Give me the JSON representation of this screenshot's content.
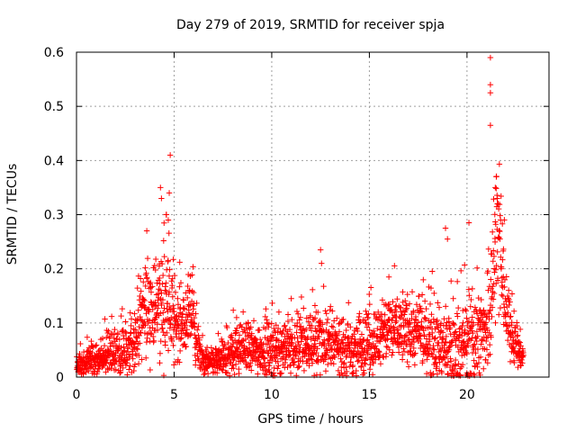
{
  "chart_data": {
    "type": "scatter",
    "title": "Day 279 of 2019, SRMTID for receiver spja",
    "xlabel": "GPS time / hours",
    "ylabel": "SRMTID / TECUs",
    "xlim": [
      0,
      24.2
    ],
    "ylim": [
      0,
      0.6
    ],
    "xticks": [
      0,
      5,
      10,
      15,
      20
    ],
    "xtick_labels": [
      "0",
      "5",
      "10",
      "15",
      "20"
    ],
    "yticks": [
      0,
      0.1,
      0.2,
      0.3,
      0.4,
      0.5,
      0.6
    ],
    "ytick_labels": [
      "0",
      "0.1",
      "0.2",
      "0.3",
      "0.4",
      "0.5",
      "0.6"
    ],
    "grid": true,
    "marker": "plus",
    "series": [
      {
        "name": "SRMTID",
        "color": "#ff0000",
        "envelope_hours": [
          0.0,
          0.5,
          1.0,
          1.5,
          2.0,
          2.5,
          3.0,
          3.3,
          3.6,
          4.0,
          4.3,
          4.6,
          5.0,
          5.5,
          5.9,
          6.2,
          6.5,
          6.8,
          7.2,
          7.6,
          8.0,
          8.5,
          9.0,
          9.5,
          10.0,
          10.5,
          11.0,
          11.5,
          12.0,
          12.5,
          13.0,
          13.5,
          14.0,
          14.5,
          15.0,
          15.5,
          16.0,
          16.5,
          17.0,
          17.5,
          18.0,
          18.5,
          19.0,
          19.5,
          20.0,
          20.5,
          21.0,
          21.3,
          21.5,
          21.8,
          22.0,
          22.3,
          22.6,
          22.9
        ],
        "envelope_center": [
          0.025,
          0.03,
          0.035,
          0.04,
          0.045,
          0.05,
          0.07,
          0.1,
          0.13,
          0.12,
          0.14,
          0.13,
          0.1,
          0.1,
          0.12,
          0.05,
          0.03,
          0.025,
          0.03,
          0.035,
          0.05,
          0.055,
          0.05,
          0.055,
          0.05,
          0.055,
          0.05,
          0.06,
          0.06,
          0.07,
          0.06,
          0.05,
          0.05,
          0.055,
          0.06,
          0.07,
          0.09,
          0.09,
          0.085,
          0.08,
          0.07,
          0.06,
          0.05,
          0.05,
          0.06,
          0.07,
          0.1,
          0.17,
          0.27,
          0.2,
          0.12,
          0.08,
          0.05,
          0.04
        ],
        "envelope_spread": [
          0.015,
          0.02,
          0.025,
          0.03,
          0.035,
          0.04,
          0.05,
          0.06,
          0.07,
          0.07,
          0.09,
          0.08,
          0.06,
          0.05,
          0.06,
          0.03,
          0.02,
          0.02,
          0.025,
          0.03,
          0.035,
          0.035,
          0.035,
          0.04,
          0.04,
          0.04,
          0.04,
          0.045,
          0.045,
          0.05,
          0.045,
          0.04,
          0.04,
          0.04,
          0.045,
          0.05,
          0.055,
          0.05,
          0.05,
          0.05,
          0.055,
          0.06,
          0.06,
          0.065,
          0.07,
          0.07,
          0.08,
          0.1,
          0.1,
          0.08,
          0.06,
          0.04,
          0.03,
          0.02
        ],
        "outliers": [
          [
            4.3,
            0.35
          ],
          [
            4.35,
            0.33
          ],
          [
            4.8,
            0.41
          ],
          [
            4.75,
            0.34
          ],
          [
            4.6,
            0.3
          ],
          [
            4.7,
            0.29
          ],
          [
            3.6,
            0.27
          ],
          [
            12.5,
            0.235
          ],
          [
            12.55,
            0.21
          ],
          [
            18.9,
            0.275
          ],
          [
            19.0,
            0.255
          ],
          [
            20.1,
            0.285
          ],
          [
            21.2,
            0.59
          ],
          [
            21.2,
            0.54
          ],
          [
            21.2,
            0.525
          ],
          [
            21.2,
            0.465
          ],
          [
            21.5,
            0.37
          ],
          [
            21.45,
            0.35
          ],
          [
            21.55,
            0.33
          ],
          [
            11.0,
            0.145
          ],
          [
            16.0,
            0.185
          ],
          [
            8.2,
            0.11
          ]
        ]
      }
    ]
  }
}
